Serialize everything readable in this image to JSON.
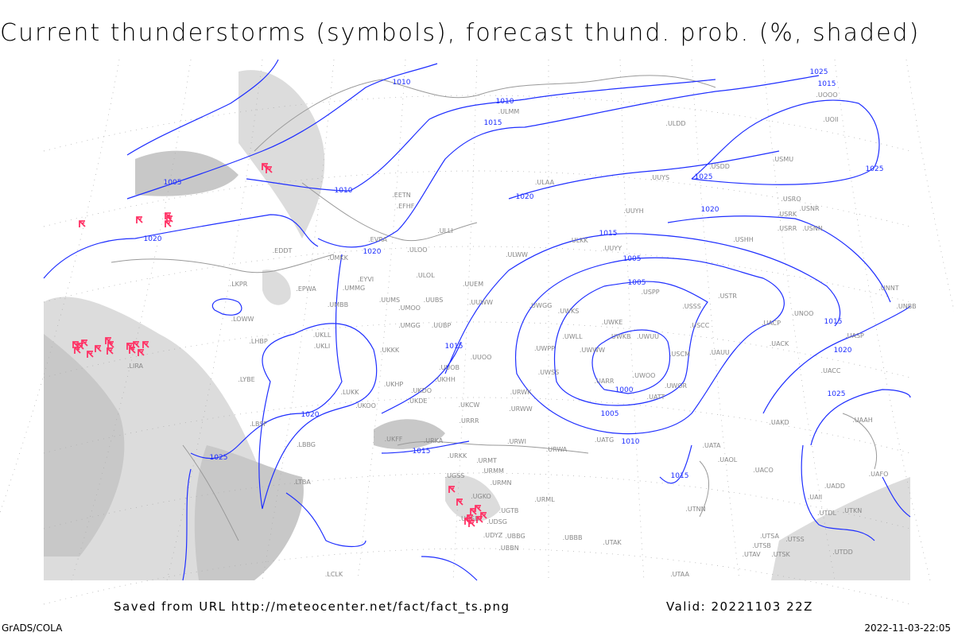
{
  "title": "Current thunderstorms (symbols), forecast thund. prob. (%, shaded)",
  "footer": {
    "saved_from": "Saved from URL http://meteocenter.net/fact/fact_ts.png",
    "valid": "Valid: 20221103 22Z",
    "software": "GrADS/COLA",
    "timestamp": "2022-11-03-22:05"
  },
  "colors": {
    "isobar": "#1f2fff",
    "thunderstorm": "#ff3366",
    "shading": "#d0d0d0",
    "coast": "#999999"
  },
  "isobar_labels": [
    "1000",
    "1005",
    "1005",
    "1005",
    "1005",
    "1010",
    "1010",
    "1010",
    "1010",
    "1015",
    "1015",
    "1015",
    "1015",
    "1015",
    "1015",
    "1015",
    "1020",
    "1020",
    "1020",
    "1020",
    "1020",
    "1020",
    "1025",
    "1025",
    "1025",
    "1025",
    "1025"
  ],
  "stations": [
    "ULMM",
    "UOOO",
    "UOII",
    "ULDD",
    "USDD",
    "USMU",
    "ULAA",
    "UUYS",
    "USRO",
    "USRK",
    "USNR",
    "USRR",
    "USNN",
    "UUYH",
    "ULLI",
    "EVRA",
    "ULOO",
    "ULWW",
    "ULKK",
    "UUYY",
    "USHH",
    "EDDT",
    "UMKK",
    "EYVI",
    "ULOL",
    "UUEM",
    "LKPR",
    "EPWA",
    "UMMG",
    "UUMS",
    "UMOO",
    "UUBS",
    "UUWW",
    "UWGG",
    "UWKS",
    "USPP",
    "USSS",
    "USTR",
    "UNOO",
    "UNNT",
    "UNBB",
    "UMBB",
    "LOWW",
    "UKLL",
    "UMGG",
    "UUBP",
    "UWKE",
    "USCC",
    "UACP",
    "UKLI",
    "LHBP",
    "UWLL",
    "UWKB",
    "UWUU",
    "UACK",
    "UASP",
    "UKKK",
    "UWPP",
    "UWWW",
    "USCM",
    "UAUU",
    "LIRA",
    "UUOO",
    "UUOB",
    "UWSS",
    "UWOO",
    "UACC",
    "LYBE",
    "UKHH",
    "UKHP",
    "UKDO",
    "UARR",
    "UWOR",
    "UATT",
    "LUKK",
    "URWK",
    "UKOO",
    "UKDE",
    "UKCW",
    "URWW",
    "UAAH",
    "LBSF",
    "URRR",
    "UAKD",
    "UKFF",
    "URWI",
    "UATG",
    "UATA",
    "LBBG",
    "URKA",
    "URKK",
    "URMT",
    "URWA",
    "UAOL",
    "UACO",
    "URMM",
    "LTBA",
    "UGSS",
    "URMN",
    "UAFO",
    "UGKO",
    "UGTB",
    "URML",
    "UTNN",
    "UADD",
    "UAII",
    "UGSB",
    "UDSG",
    "UTDL",
    "UTKN",
    "UBBG",
    "UDYZ",
    "UBBB",
    "UTSA",
    "UTSS",
    "UTSB",
    "UTAK",
    "UBBN",
    "UTAV",
    "UTSK",
    "UTDD",
    "UTAA",
    "LCLK",
    "EFHF",
    "EETN"
  ],
  "thunderstorm_symbol_count": 30
}
